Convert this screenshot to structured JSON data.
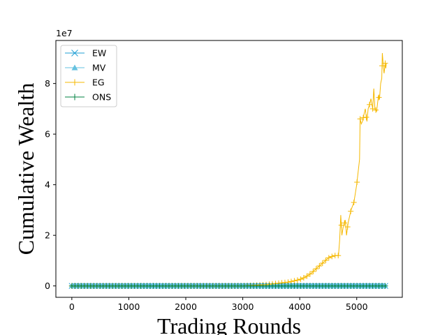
{
  "chart_data": {
    "type": "line",
    "xlabel": "Trading Rounds",
    "ylabel": "Cumulative Wealth",
    "y_scale_label": "1e7",
    "y_multiplier": 10000000,
    "xlim": [
      -280,
      5800
    ],
    "ylim": [
      -0.45,
      9.7
    ],
    "x_ticks": [
      0,
      1000,
      2000,
      3000,
      4000,
      5000
    ],
    "x_tick_labels": [
      "0",
      "1000",
      "2000",
      "3000",
      "4000",
      "5000"
    ],
    "y_ticks": [
      0,
      2,
      4,
      6,
      8
    ],
    "y_tick_labels": [
      "0",
      "2",
      "4",
      "6",
      "8"
    ],
    "grid": false,
    "legend_position": "top-left",
    "series": [
      {
        "name": "EW",
        "color": "#1f9fd6",
        "marker": "x",
        "x": [
          0,
          500,
          1000,
          1500,
          2000,
          2500,
          3000,
          3500,
          4000,
          4500,
          5000,
          5520
        ],
        "values": [
          0,
          0,
          0,
          0,
          0,
          0,
          0,
          0,
          0,
          0,
          0,
          0
        ]
      },
      {
        "name": "MV",
        "color": "#66c2e0",
        "marker": "triangle",
        "x": [
          0,
          500,
          1000,
          1500,
          2000,
          2500,
          3000,
          3500,
          4000,
          4500,
          5000,
          5520
        ],
        "values": [
          0,
          0,
          0,
          0,
          0,
          0,
          0,
          0,
          0,
          0,
          0,
          0
        ]
      },
      {
        "name": "EG",
        "color": "#f5b800",
        "marker": "plus",
        "x": [
          0,
          3000,
          3400,
          3600,
          3800,
          3900,
          4000,
          4100,
          4200,
          4300,
          4400,
          4500,
          4600,
          4680,
          4700,
          4720,
          4740,
          4760,
          4800,
          4820,
          4850,
          4900,
          4950,
          5000,
          5050,
          5060,
          5080,
          5100,
          5130,
          5150,
          5180,
          5200,
          5230,
          5250,
          5280,
          5300,
          5320,
          5350,
          5380,
          5400,
          5420,
          5440,
          5450,
          5470,
          5480,
          5500,
          5510,
          5520
        ],
        "values": [
          0,
          0,
          0.05,
          0.1,
          0.15,
          0.2,
          0.25,
          0.35,
          0.5,
          0.7,
          0.9,
          1.1,
          1.2,
          1.2,
          1.8,
          2.8,
          2.0,
          2.3,
          2.6,
          2.0,
          2.5,
          3.0,
          3.3,
          4.0,
          5.0,
          6.6,
          6.4,
          6.5,
          6.8,
          7.0,
          6.5,
          7.0,
          7.2,
          7.4,
          7.0,
          7.8,
          7.0,
          6.9,
          7.5,
          7.4,
          8.0,
          8.2,
          9.2,
          8.6,
          8.4,
          8.8,
          8.6,
          8.8
        ]
      },
      {
        "name": "ONS",
        "color": "#008040",
        "marker": "plus",
        "x": [
          0,
          500,
          1000,
          1500,
          2000,
          2500,
          3000,
          3500,
          4000,
          4500,
          5000,
          5520
        ],
        "values": [
          0,
          0,
          0,
          0,
          0,
          0,
          0,
          0,
          0,
          0,
          0,
          0
        ]
      }
    ]
  }
}
